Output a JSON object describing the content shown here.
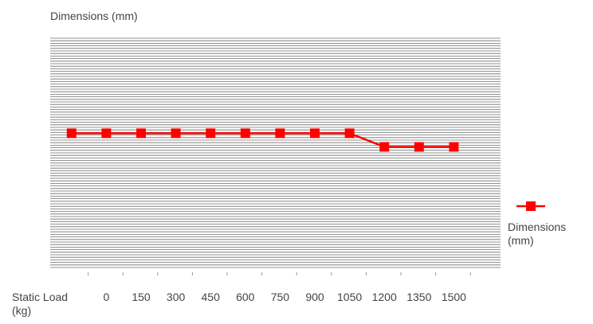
{
  "chart_data": {
    "type": "line",
    "title": "Dimensions (mm)",
    "xlabel": "Static Load (kg)",
    "xlabel_lines": [
      "Static Load",
      "(kg)"
    ],
    "ylabel": "",
    "categories": [
      "",
      "0",
      "150",
      "300",
      "450",
      "600",
      "750",
      "900",
      "1050",
      "1200",
      "1350",
      "1500"
    ],
    "series": [
      {
        "name": "Dimensions (mm)",
        "name_lines": [
          "Dimensions",
          "(mm)"
        ],
        "color": "#ff0000",
        "values": [
          100,
          100,
          100,
          100,
          100,
          100,
          100,
          100,
          100,
          90,
          90,
          90
        ]
      }
    ],
    "ylim": [
      0,
      170
    ],
    "grid": true,
    "legend": "right"
  }
}
